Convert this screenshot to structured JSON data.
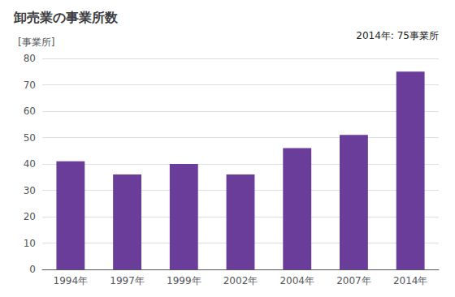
{
  "chart_data": {
    "type": "bar",
    "title": "卸売業の事業所数",
    "ylabel": "[事業所]",
    "annotation": "2014年: 75事業所",
    "categories": [
      "1994年",
      "1997年",
      "1999年",
      "2002年",
      "2004年",
      "2007年",
      "2014年"
    ],
    "values": [
      41,
      36,
      40,
      36,
      46,
      51,
      75
    ],
    "color": "#6a3d9a",
    "ylim": [
      0,
      80
    ],
    "yticks": [
      0,
      10,
      20,
      30,
      40,
      50,
      60,
      70,
      80
    ],
    "grid": true
  }
}
